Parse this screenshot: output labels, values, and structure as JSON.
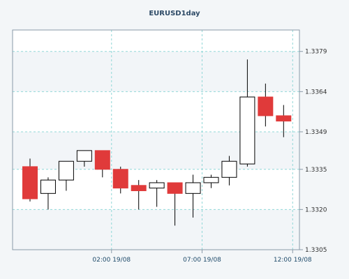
{
  "chart_data": {
    "type": "candlestick",
    "title": "EURUSD1day",
    "ylim": [
      1.3305,
      1.3387
    ],
    "y_ticks": [
      "1.3379",
      "1.3364",
      "1.3349",
      "1.3335",
      "1.3320",
      "1.3305"
    ],
    "x_ticks": [
      "02:00 19/08",
      "07:00 19/08",
      "12:00 19/08"
    ],
    "x_tick_candle_index": [
      4.5,
      9.5,
      14.5
    ],
    "grid": true,
    "colors": {
      "background": "#f3f6f8",
      "plot_background": "#ffffff",
      "band": "#f2f5f8",
      "grid": "#90d8d8",
      "frame": "#8a9aa8",
      "up_fill": "#ffffff",
      "down_fill": "#e03a3a",
      "wick": "#000000"
    },
    "candles": [
      {
        "open": 1.3336,
        "high": 1.3339,
        "low": 1.3323,
        "close": 1.3324
      },
      {
        "open": 1.3326,
        "high": 1.3332,
        "low": 1.332,
        "close": 1.3331
      },
      {
        "open": 1.3331,
        "high": 1.3338,
        "low": 1.3327,
        "close": 1.3338
      },
      {
        "open": 1.3338,
        "high": 1.3342,
        "low": 1.3336,
        "close": 1.3342
      },
      {
        "open": 1.3342,
        "high": 1.3342,
        "low": 1.3332,
        "close": 1.3335
      },
      {
        "open": 1.3335,
        "high": 1.3336,
        "low": 1.3326,
        "close": 1.3328
      },
      {
        "open": 1.3329,
        "high": 1.3331,
        "low": 1.332,
        "close": 1.3327
      },
      {
        "open": 1.3328,
        "high": 1.3331,
        "low": 1.3321,
        "close": 1.333
      },
      {
        "open": 1.333,
        "high": 1.333,
        "low": 1.3314,
        "close": 1.3326
      },
      {
        "open": 1.3326,
        "high": 1.3333,
        "low": 1.3317,
        "close": 1.333
      },
      {
        "open": 1.333,
        "high": 1.3333,
        "low": 1.3328,
        "close": 1.3332
      },
      {
        "open": 1.3332,
        "high": 1.334,
        "low": 1.3329,
        "close": 1.3338
      },
      {
        "open": 1.3337,
        "high": 1.3376,
        "low": 1.3336,
        "close": 1.3362
      },
      {
        "open": 1.3362,
        "high": 1.3367,
        "low": 1.3351,
        "close": 1.3355
      },
      {
        "open": 1.3355,
        "high": 1.3359,
        "low": 1.3347,
        "close": 1.3353
      }
    ]
  }
}
